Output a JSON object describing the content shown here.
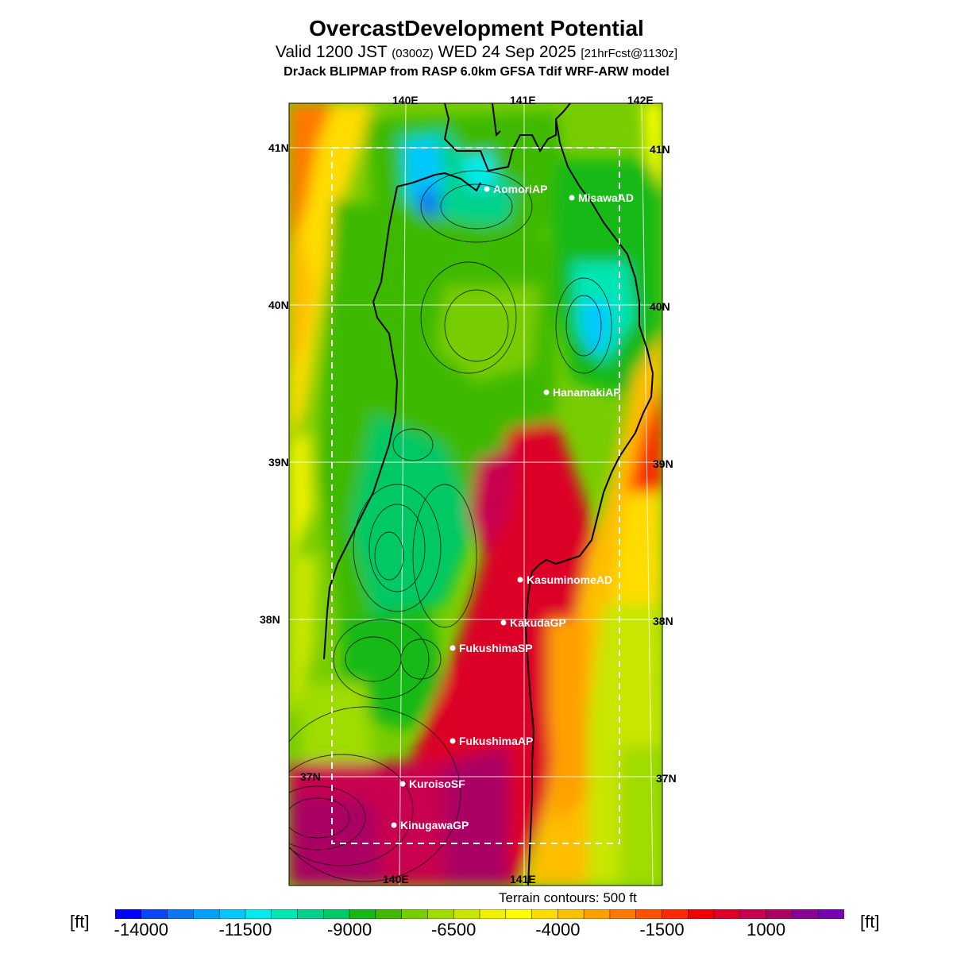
{
  "header": {
    "title": "OvercastDevelopment Potential",
    "valid_prefix": "Valid 1200 JST",
    "valid_utc": "(0300Z)",
    "valid_date": "WED 24 Sep 2025",
    "forecast": "[21hrFcst@1130z]",
    "model_line": "DrJack BLIPMAP from RASP 6.0km GFSA Tdif WRF-ARW model"
  },
  "graticule": {
    "lon_labels": [
      "140E",
      "141E",
      "142E"
    ],
    "lat_labels": [
      "41N",
      "40N",
      "39N",
      "38N",
      "37N"
    ]
  },
  "stations": [
    {
      "name": "AomoriAP"
    },
    {
      "name": "MisawaAD"
    },
    {
      "name": "HanamakiAP"
    },
    {
      "name": "KasuminomeAD"
    },
    {
      "name": "KakudaGP"
    },
    {
      "name": "FukushimaSP"
    },
    {
      "name": "FukushimaAP"
    },
    {
      "name": "KuroisoSF"
    },
    {
      "name": "KinugawaGP"
    }
  ],
  "footer": {
    "contour_note": "Terrain contours: 500 ft",
    "unit_left": "[ft]",
    "unit_right": "[ft]"
  },
  "colorbar": {
    "tick_labels": [
      "-14000",
      "-11500",
      "-9000",
      "-6500",
      "-4000",
      "-1500",
      "1000"
    ],
    "colors": [
      "#0000ff",
      "#0a46f5",
      "#0a78f0",
      "#00a0ff",
      "#00c8ff",
      "#00ebeb",
      "#00e6b4",
      "#00d28c",
      "#00c864",
      "#14b914",
      "#3cb900",
      "#78cd00",
      "#a0dc00",
      "#c8e600",
      "#f0f000",
      "#ffff00",
      "#ffdc00",
      "#ffbe00",
      "#ffa000",
      "#ff7800",
      "#ff5000",
      "#ff2800",
      "#f00000",
      "#dc0028",
      "#c80050",
      "#aa0064",
      "#8c0096",
      "#7800b4"
    ]
  }
}
